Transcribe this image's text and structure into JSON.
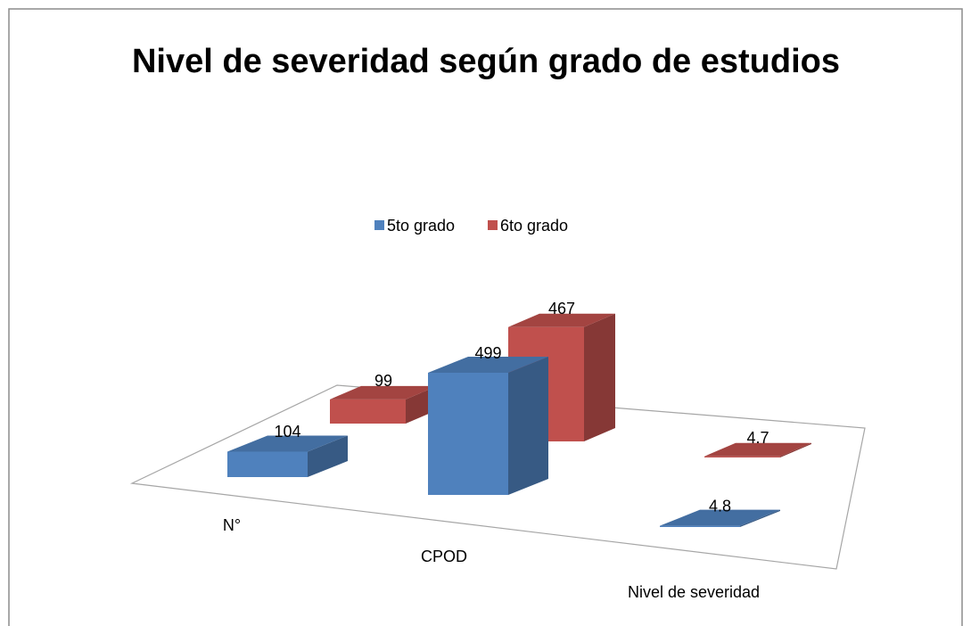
{
  "chart_data": {
    "type": "bar3d",
    "title": "Nivel de severidad según grado de estudios",
    "categories": [
      "N°",
      "CPOD",
      "Nivel de severidad"
    ],
    "series": [
      {
        "name": "5to grado",
        "color": "#4f81bd",
        "values": [
          104,
          499,
          4.8
        ]
      },
      {
        "name": "6to grado",
        "color": "#c0504d",
        "values": [
          99,
          467,
          4.7
        ]
      }
    ],
    "legend": "top"
  }
}
